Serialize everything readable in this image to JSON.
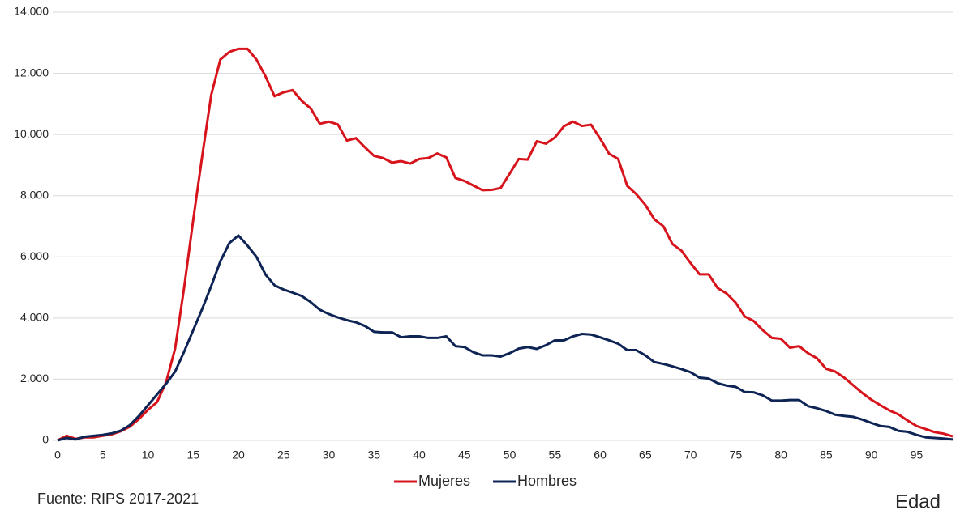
{
  "chart_data": {
    "type": "line",
    "x": [
      0,
      1,
      2,
      3,
      4,
      5,
      6,
      7,
      8,
      9,
      10,
      11,
      12,
      13,
      14,
      15,
      16,
      17,
      18,
      19,
      20,
      21,
      22,
      23,
      24,
      25,
      26,
      27,
      28,
      29,
      30,
      31,
      32,
      33,
      34,
      35,
      36,
      37,
      38,
      39,
      40,
      41,
      42,
      43,
      44,
      45,
      46,
      47,
      48,
      49,
      50,
      51,
      52,
      53,
      54,
      55,
      56,
      57,
      58,
      59,
      60,
      61,
      62,
      63,
      64,
      65,
      66,
      67,
      68,
      69,
      70,
      71,
      72,
      73,
      74,
      75,
      76,
      77,
      78,
      79,
      80,
      81,
      82,
      83,
      84,
      85,
      86,
      87,
      88,
      89,
      90,
      91,
      92,
      93,
      94,
      95,
      96,
      97,
      98,
      99
    ],
    "series": [
      {
        "name": "Mujeres",
        "color": "#d7141c",
        "values": [
          0,
          150,
          50,
          100,
          100,
          150,
          200,
          300,
          450,
          700,
          1000,
          1250,
          1900,
          3000,
          5000,
          7200,
          9300,
          11300,
          12450,
          12700,
          12800,
          12800,
          12450,
          11900,
          11250,
          11380,
          11450,
          11100,
          10850,
          10350,
          10420,
          10330,
          9800,
          9880,
          9580,
          9300,
          9230,
          9080,
          9130,
          9050,
          9200,
          9230,
          9380,
          9250,
          8580,
          8480,
          8330,
          8180,
          8190,
          8250,
          8720,
          9200,
          9180,
          9780,
          9700,
          9900,
          10270,
          10420,
          10280,
          10320,
          9870,
          9370,
          9200,
          8320,
          8050,
          7700,
          7230,
          7000,
          6420,
          6200,
          5800,
          5430,
          5430,
          4980,
          4800,
          4500,
          4050,
          3900,
          3600,
          3350,
          3320,
          3030,
          3080,
          2850,
          2680,
          2340,
          2250,
          2050,
          1800,
          1550,
          1330,
          1150,
          980,
          850,
          650,
          470,
          370,
          270,
          220,
          130
        ]
      },
      {
        "name": "Hombres",
        "color": "#0e2455",
        "values": [
          0,
          80,
          30,
          120,
          150,
          180,
          230,
          320,
          500,
          800,
          1150,
          1500,
          1850,
          2250,
          2900,
          3600,
          4300,
          5050,
          5850,
          6450,
          6700,
          6370,
          6000,
          5420,
          5070,
          4930,
          4830,
          4720,
          4520,
          4270,
          4130,
          4020,
          3930,
          3860,
          3740,
          3550,
          3530,
          3530,
          3370,
          3400,
          3400,
          3350,
          3350,
          3400,
          3080,
          3050,
          2880,
          2780,
          2780,
          2740,
          2850,
          3000,
          3050,
          2990,
          3110,
          3270,
          3270,
          3400,
          3480,
          3460,
          3370,
          3270,
          3160,
          2950,
          2950,
          2780,
          2560,
          2500,
          2420,
          2330,
          2230,
          2050,
          2020,
          1870,
          1790,
          1750,
          1580,
          1570,
          1470,
          1300,
          1300,
          1320,
          1320,
          1120,
          1050,
          960,
          840,
          800,
          770,
          680,
          570,
          470,
          440,
          310,
          280,
          180,
          100,
          80,
          60,
          30
        ]
      }
    ],
    "xlim": [
      0,
      99
    ],
    "xticks": [
      0,
      5,
      10,
      15,
      20,
      25,
      30,
      35,
      40,
      45,
      50,
      55,
      60,
      65,
      70,
      75,
      80,
      85,
      90,
      95
    ],
    "ylim": [
      0,
      14000
    ],
    "yticks": [
      0,
      {
        "value": 2000,
        "label": "2.000"
      },
      {
        "value": 4000,
        "label": "4.000"
      },
      {
        "value": 6000,
        "label": "6.000"
      },
      {
        "value": 8000,
        "label": "8.000"
      },
      {
        "value": 10000,
        "label": "10.000"
      },
      {
        "value": 12000,
        "label": "12.000"
      },
      {
        "value": 14000,
        "label": "14.000"
      }
    ],
    "grid": true,
    "legend": "bottom",
    "source": "Fuente: RIPS 2017-2021",
    "x_label": "Edad"
  }
}
